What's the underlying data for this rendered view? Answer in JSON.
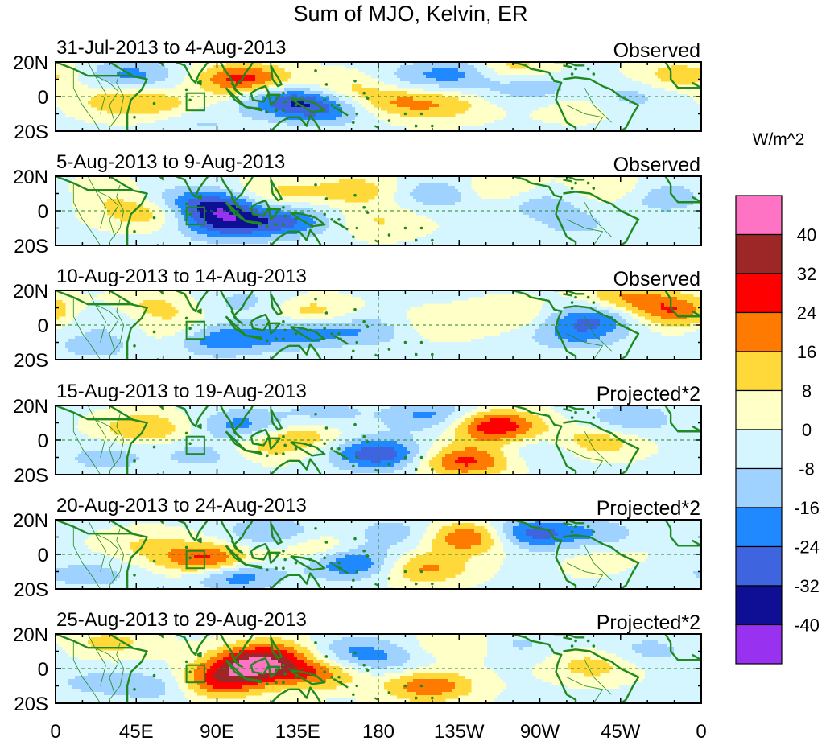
{
  "chart_data": {
    "type": "heatmap",
    "title": "Sum of MJO, Kelvin, ER",
    "colorbar": {
      "unit_label": "W/m^2",
      "levels": [
        40,
        32,
        24,
        16,
        8,
        0,
        -8,
        -16,
        -24,
        -32,
        -40
      ],
      "colors": [
        "#ff73c4",
        "#9d2626",
        "#ff0000",
        "#ff7a00",
        "#ffd83a",
        "#ffffc8",
        "#d5f5ff",
        "#9fd2ff",
        "#2189ff",
        "#3f64e0",
        "#0f0f96",
        "#9932f0"
      ]
    },
    "x_ticks": [
      "0",
      "45E",
      "90E",
      "135E",
      "180",
      "135W",
      "90W",
      "45W",
      "0"
    ],
    "y_ticks": [
      "20N",
      "0",
      "20S"
    ],
    "panels": [
      {
        "date_range": "31-Jul-2013 to 4-Aug-2013",
        "label": "Observed",
        "blobs": [
          {
            "lon": 105,
            "lat": 10,
            "v": 30
          },
          {
            "lon": 190,
            "lat": -3,
            "v": 16
          },
          {
            "lon": 35,
            "lat": -2,
            "v": 14
          },
          {
            "lon": 60,
            "lat": -5,
            "v": 10
          },
          {
            "lon": 160,
            "lat": 5,
            "v": 12
          },
          {
            "lon": 218,
            "lat": -5,
            "v": 12
          },
          {
            "lon": 250,
            "lat": 16,
            "v": 20
          },
          {
            "lon": 290,
            "lat": -5,
            "v": 8
          },
          {
            "lon": 348,
            "lat": 12,
            "v": 14
          },
          {
            "lon": 130,
            "lat": -2,
            "v": -26
          },
          {
            "lon": 150,
            "lat": -8,
            "v": -18
          },
          {
            "lon": 230,
            "lat": 14,
            "v": -20
          },
          {
            "lon": 265,
            "lat": 5,
            "v": -14
          },
          {
            "lon": 42,
            "lat": 12,
            "v": -18
          },
          {
            "lon": 320,
            "lat": 0,
            "v": -10
          },
          {
            "lon": 80,
            "lat": -15,
            "v": -8
          },
          {
            "lon": 200,
            "lat": 10,
            "v": -10
          }
        ]
      },
      {
        "date_range": "5-Aug-2013 to 9-Aug-2013",
        "label": "Observed",
        "blobs": [
          {
            "lon": 88,
            "lat": 3,
            "v": -30
          },
          {
            "lon": 95,
            "lat": -8,
            "v": -26
          },
          {
            "lon": 130,
            "lat": -6,
            "v": -22
          },
          {
            "lon": 60,
            "lat": 5,
            "v": -12
          },
          {
            "lon": 215,
            "lat": 10,
            "v": -16
          },
          {
            "lon": 270,
            "lat": 5,
            "v": -12
          },
          {
            "lon": 340,
            "lat": 8,
            "v": -14
          },
          {
            "lon": 52,
            "lat": 0,
            "v": 22
          },
          {
            "lon": 168,
            "lat": 12,
            "v": 14
          },
          {
            "lon": 122,
            "lat": 10,
            "v": 12
          },
          {
            "lon": 180,
            "lat": -6,
            "v": 10
          },
          {
            "lon": 245,
            "lat": 12,
            "v": 14
          },
          {
            "lon": 310,
            "lat": 12,
            "v": 10
          },
          {
            "lon": 25,
            "lat": 10,
            "v": 8
          },
          {
            "lon": 290,
            "lat": -8,
            "v": -8
          }
        ]
      },
      {
        "date_range": "10-Aug-2013 to 14-Aug-2013",
        "label": "Observed",
        "blobs": [
          {
            "lon": 52,
            "lat": 10,
            "v": 14
          },
          {
            "lon": 70,
            "lat": -3,
            "v": 10
          },
          {
            "lon": 140,
            "lat": 7,
            "v": 16
          },
          {
            "lon": 92,
            "lat": -8,
            "v": -24
          },
          {
            "lon": 135,
            "lat": -4,
            "v": -20
          },
          {
            "lon": 175,
            "lat": -3,
            "v": -14
          },
          {
            "lon": 300,
            "lat": 4,
            "v": -22
          },
          {
            "lon": 288,
            "lat": -6,
            "v": -14
          },
          {
            "lon": 345,
            "lat": 8,
            "v": 24
          },
          {
            "lon": 318,
            "lat": 16,
            "v": 18
          },
          {
            "lon": 255,
            "lat": 6,
            "v": 10
          },
          {
            "lon": 208,
            "lat": 0,
            "v": 8
          },
          {
            "lon": 30,
            "lat": 5,
            "v": -10
          },
          {
            "lon": 22,
            "lat": -12,
            "v": -10
          },
          {
            "lon": 108,
            "lat": 13,
            "v": -10
          }
        ]
      },
      {
        "date_range": "15-Aug-2013 to 19-Aug-2013",
        "label": "Projected*2",
        "blobs": [
          {
            "lon": 245,
            "lat": 8,
            "v": 34
          },
          {
            "lon": 228,
            "lat": -12,
            "v": 28
          },
          {
            "lon": 135,
            "lat": 3,
            "v": 16
          },
          {
            "lon": 50,
            "lat": 7,
            "v": 18
          },
          {
            "lon": 300,
            "lat": -1,
            "v": 18
          },
          {
            "lon": 110,
            "lat": -4,
            "v": 12
          },
          {
            "lon": 180,
            "lat": -8,
            "v": -30
          },
          {
            "lon": 105,
            "lat": 8,
            "v": -20
          },
          {
            "lon": 85,
            "lat": -8,
            "v": -12
          },
          {
            "lon": 210,
            "lat": 14,
            "v": -18
          },
          {
            "lon": 320,
            "lat": 12,
            "v": -14
          },
          {
            "lon": 275,
            "lat": -5,
            "v": -10
          },
          {
            "lon": 28,
            "lat": -10,
            "v": -10
          },
          {
            "lon": 150,
            "lat": 15,
            "v": -10
          }
        ]
      },
      {
        "date_range": "20-Aug-2013 to 24-Aug-2013",
        "label": "Projected*2",
        "blobs": [
          {
            "lon": 85,
            "lat": -3,
            "v": 30
          },
          {
            "lon": 232,
            "lat": 10,
            "v": 30
          },
          {
            "lon": 205,
            "lat": -8,
            "v": 20
          },
          {
            "lon": 145,
            "lat": 3,
            "v": 14
          },
          {
            "lon": 312,
            "lat": -5,
            "v": 10
          },
          {
            "lon": 50,
            "lat": 5,
            "v": 10
          },
          {
            "lon": 100,
            "lat": -12,
            "v": -22
          },
          {
            "lon": 165,
            "lat": -5,
            "v": -26
          },
          {
            "lon": 262,
            "lat": 12,
            "v": -28
          },
          {
            "lon": 120,
            "lat": 12,
            "v": -16
          },
          {
            "lon": 300,
            "lat": 12,
            "v": -12
          },
          {
            "lon": 330,
            "lat": -10,
            "v": -8
          },
          {
            "lon": 20,
            "lat": -12,
            "v": -10
          },
          {
            "lon": 190,
            "lat": 12,
            "v": -12
          }
        ]
      },
      {
        "date_range": "25-Aug-2013 to 29-Aug-2013",
        "label": "Projected*2",
        "blobs": [
          {
            "lon": 110,
            "lat": 2,
            "v": 36
          },
          {
            "lon": 90,
            "lat": -8,
            "v": 30
          },
          {
            "lon": 145,
            "lat": -3,
            "v": 22
          },
          {
            "lon": 122,
            "lat": 10,
            "v": 16
          },
          {
            "lon": 208,
            "lat": -10,
            "v": 24
          },
          {
            "lon": 230,
            "lat": 14,
            "v": 14
          },
          {
            "lon": 300,
            "lat": 2,
            "v": 14
          },
          {
            "lon": 30,
            "lat": 15,
            "v": 12
          },
          {
            "lon": 60,
            "lat": -10,
            "v": -14
          },
          {
            "lon": 165,
            "lat": 10,
            "v": -14
          },
          {
            "lon": 252,
            "lat": 14,
            "v": -12
          },
          {
            "lon": 182,
            "lat": 4,
            "v": -10
          },
          {
            "lon": 330,
            "lat": 10,
            "v": -10
          },
          {
            "lon": 20,
            "lat": -8,
            "v": -8
          }
        ]
      }
    ]
  }
}
